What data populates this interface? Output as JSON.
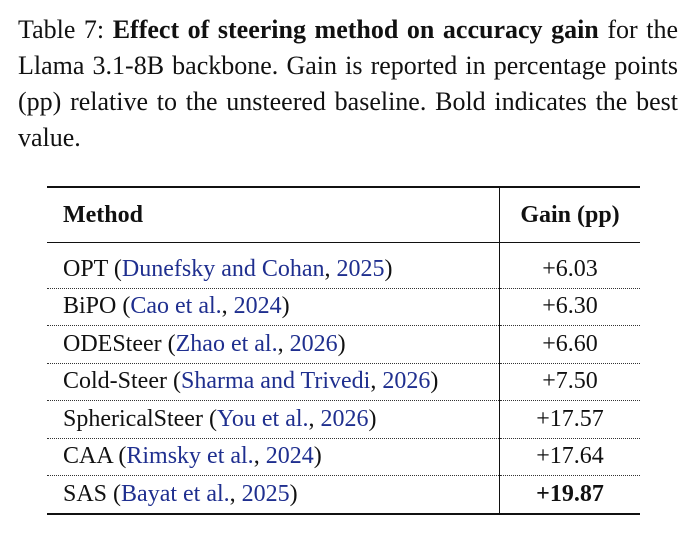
{
  "caption": {
    "label": "Table 7:",
    "title": "Effect of steering method on accuracy gain",
    "text": "for the Llama 3.1-8B backbone.  Gain is reported in percentage points (pp) relative to the unsteered baseline. Bold indicates the best value."
  },
  "table": {
    "headers": [
      "Method",
      "Gain (pp)"
    ],
    "rows": [
      {
        "method": "OPT",
        "cite_author": "Dunefsky and Cohan",
        "cite_year": "2025",
        "gain": "+6.03",
        "best": false
      },
      {
        "method": "BiPO",
        "cite_author": "Cao et al.",
        "cite_year": "2024",
        "gain": "+6.30",
        "best": false
      },
      {
        "method": "ODESteer",
        "cite_author": "Zhao et al.",
        "cite_year": "2026",
        "gain": "+6.60",
        "best": false
      },
      {
        "method": "Cold-Steer",
        "cite_author": "Sharma and Trivedi",
        "cite_year": "2026",
        "gain": "+7.50",
        "best": false
      },
      {
        "method": "SphericalSteer",
        "cite_author": "You et al.",
        "cite_year": "2026",
        "gain": "+17.57",
        "best": false
      },
      {
        "method": "CAA",
        "cite_author": "Rimsky et al.",
        "cite_year": "2024",
        "gain": "+17.64",
        "best": false
      },
      {
        "method": "SAS",
        "cite_author": "Bayat et al.",
        "cite_year": "2025",
        "gain": "+19.87",
        "best": true
      }
    ]
  }
}
